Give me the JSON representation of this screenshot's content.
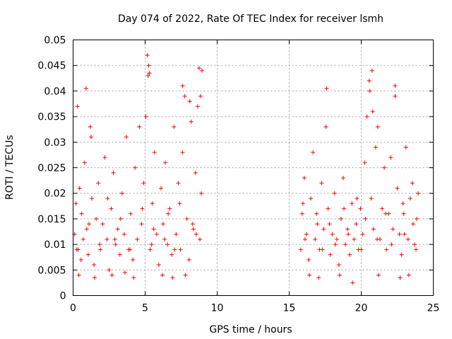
{
  "chart_data": {
    "type": "scatter",
    "title": "Day 074 of 2022, Rate Of TEC Index for receiver lsmh",
    "xlabel": "GPS time / hours",
    "ylabel": "ROTI / TECUs",
    "xlim": [
      0,
      25
    ],
    "ylim": [
      0,
      0.05
    ],
    "xticks": [
      "0",
      "5",
      "10",
      "15",
      "20",
      "25"
    ],
    "yticks": [
      "0",
      "0.005",
      "0.01",
      "0.015",
      "0.02",
      "0.025",
      "0.03",
      "0.035",
      "0.04",
      "0.045",
      "0.05"
    ],
    "grid": true,
    "marker": "+",
    "color": "#ff0000",
    "series": [
      {
        "x": [
          0.1,
          0.2,
          0.35,
          0.45,
          0.55,
          0.7,
          0.8,
          0.95,
          1.05,
          1.2,
          1.3,
          1.45,
          1.6,
          1.75,
          1.9,
          2.05,
          2.2,
          2.35,
          2.5,
          2.65,
          2.8,
          2.95,
          3.1,
          3.25,
          3.4,
          3.55,
          3.7,
          3.85,
          4.0,
          4.15,
          4.3,
          4.45,
          4.6,
          4.75,
          4.9,
          5.05,
          5.2,
          5.35,
          5.5,
          5.65,
          5.8,
          5.95,
          6.1,
          6.25,
          6.4,
          6.55,
          6.7,
          6.85,
          7.0,
          7.15,
          7.3,
          7.45,
          7.6,
          7.75,
          7.9,
          8.05,
          8.2,
          8.35,
          8.5,
          8.65,
          8.8,
          8.95,
          0.3,
          0.9,
          1.25,
          5.15,
          5.25,
          5.3,
          7.6,
          8.1,
          8.75,
          8.85,
          0.4,
          1.5,
          2.7,
          3.6,
          4.2,
          6.2,
          6.9,
          7.8,
          0.6,
          1.1,
          2.4,
          3.3,
          4.8,
          5.6,
          6.6,
          7.4,
          8.3,
          8.9,
          0.25,
          1.85,
          2.9,
          3.95,
          5.45,
          6.35,
          7.05,
          8.55
        ],
        "y": [
          0.012,
          0.018,
          0.009,
          0.021,
          0.007,
          0.011,
          0.026,
          0.013,
          0.008,
          0.033,
          0.019,
          0.006,
          0.015,
          0.022,
          0.009,
          0.014,
          0.027,
          0.011,
          0.005,
          0.017,
          0.024,
          0.01,
          0.013,
          0.008,
          0.02,
          0.012,
          0.031,
          0.009,
          0.016,
          0.007,
          0.025,
          0.011,
          0.033,
          0.014,
          0.022,
          0.035,
          0.043,
          0.009,
          0.018,
          0.028,
          0.012,
          0.006,
          0.021,
          0.014,
          0.026,
          0.01,
          0.017,
          0.008,
          0.033,
          0.012,
          0.022,
          0.009,
          0.028,
          0.039,
          0.015,
          0.007,
          0.034,
          0.013,
          0.024,
          0.037,
          0.011,
          0.044,
          0.037,
          0.0405,
          0.031,
          0.047,
          0.045,
          0.0435,
          0.041,
          0.038,
          0.0445,
          0.039,
          0.004,
          0.0035,
          0.004,
          0.0045,
          0.0035,
          0.004,
          0.0035,
          0.004,
          0.016,
          0.014,
          0.019,
          0.015,
          0.017,
          0.013,
          0.016,
          0.018,
          0.014,
          0.02,
          0.009,
          0.01,
          0.011,
          0.009,
          0.01,
          0.011,
          0.009,
          0.012
        ]
      },
      {
        "x": [
          15.8,
          15.9,
          16.05,
          16.2,
          16.35,
          16.5,
          16.65,
          16.8,
          16.95,
          17.1,
          17.25,
          17.4,
          17.55,
          17.7,
          17.85,
          18.0,
          18.15,
          18.3,
          18.45,
          18.6,
          18.75,
          18.9,
          19.05,
          19.2,
          19.35,
          19.5,
          19.65,
          19.8,
          19.95,
          20.1,
          20.25,
          20.4,
          20.55,
          20.7,
          20.85,
          21.0,
          21.15,
          21.3,
          21.45,
          21.6,
          21.75,
          21.9,
          22.05,
          22.2,
          22.35,
          22.5,
          22.65,
          22.8,
          22.95,
          23.1,
          23.25,
          23.4,
          23.55,
          23.7,
          23.85,
          23.95,
          17.6,
          20.6,
          20.75,
          20.8,
          22.35,
          16.4,
          17.05,
          18.5,
          19.4,
          21.2,
          22.7,
          23.3,
          15.95,
          16.9,
          17.8,
          18.8,
          19.7,
          20.3,
          21.7,
          22.9,
          23.6,
          16.1,
          17.3,
          18.2,
          19.1,
          20.0,
          21.1,
          22.1,
          23.0,
          23.8
        ],
        "y": [
          0.009,
          0.016,
          0.023,
          0.012,
          0.007,
          0.019,
          0.028,
          0.011,
          0.014,
          0.009,
          0.022,
          0.013,
          0.033,
          0.017,
          0.008,
          0.012,
          0.02,
          0.011,
          0.006,
          0.015,
          0.023,
          0.01,
          0.013,
          0.008,
          0.018,
          0.011,
          0.014,
          0.009,
          0.017,
          0.012,
          0.026,
          0.035,
          0.042,
          0.019,
          0.013,
          0.029,
          0.033,
          0.011,
          0.017,
          0.025,
          0.009,
          0.016,
          0.027,
          0.013,
          0.039,
          0.021,
          0.012,
          0.008,
          0.016,
          0.029,
          0.011,
          0.019,
          0.022,
          0.01,
          0.015,
          0.02,
          0.0405,
          0.04,
          0.044,
          0.036,
          0.041,
          0.004,
          0.0035,
          0.004,
          0.0025,
          0.004,
          0.0035,
          0.004,
          0.018,
          0.016,
          0.014,
          0.017,
          0.019,
          0.015,
          0.016,
          0.018,
          0.014,
          0.011,
          0.009,
          0.01,
          0.012,
          0.009,
          0.011,
          0.01,
          0.012,
          0.009
        ]
      }
    ]
  }
}
